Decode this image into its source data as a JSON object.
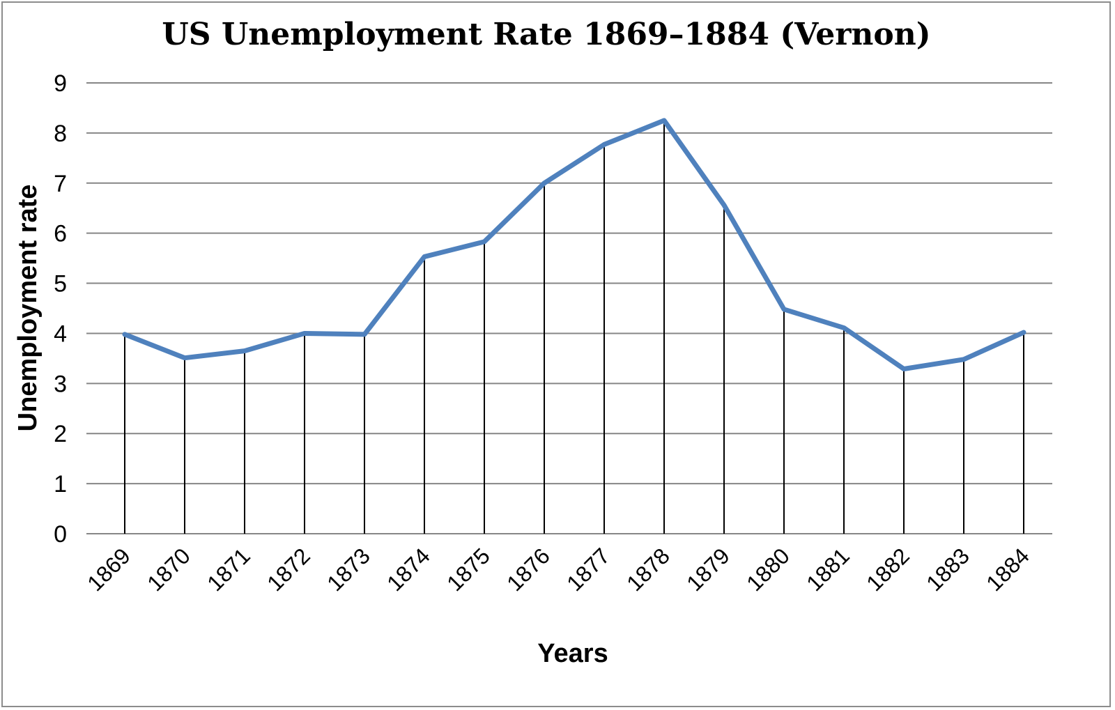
{
  "chart_data": {
    "type": "line",
    "title": "US Unemployment Rate 1869–1884 (Vernon)",
    "xlabel": "Years",
    "ylabel": "Unemployment rate",
    "categories": [
      "1869",
      "1870",
      "1871",
      "1872",
      "1873",
      "1874",
      "1875",
      "1876",
      "1877",
      "1878",
      "1879",
      "1880",
      "1881",
      "1882",
      "1883",
      "1884"
    ],
    "series": [
      {
        "values": [
          3.98,
          3.51,
          3.65,
          4.0,
          3.98,
          5.53,
          5.83,
          7.0,
          7.77,
          8.25,
          6.56,
          4.48,
          4.11,
          3.29,
          3.48,
          4.02
        ],
        "color": "#4f81bd"
      }
    ],
    "ylim": [
      0,
      9
    ],
    "yticks": [
      "0",
      "1",
      "2",
      "3",
      "4",
      "5",
      "6",
      "7",
      "8",
      "9"
    ],
    "grid": true,
    "drop_lines": true,
    "legend": "none"
  }
}
